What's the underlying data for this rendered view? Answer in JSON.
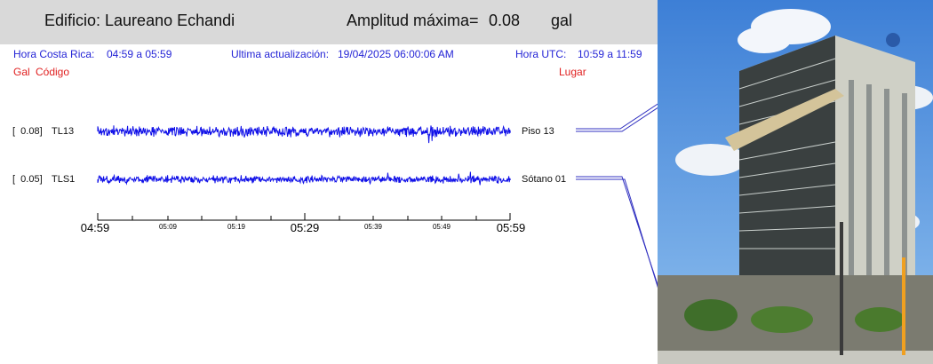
{
  "header": {
    "building_label": "Edificio: Laureano Echandi",
    "amplitude_label": "Amplitud máxima=",
    "amplitude_value": "0.08",
    "amplitude_unit": "gal"
  },
  "info": {
    "local_time_label": "Hora Costa Rica:",
    "local_time_range": "04:59 a 05:59",
    "update_label": "Ultima actualización:",
    "update_value": "19/04/2025 06:00:06 AM",
    "utc_label": "Hora UTC:",
    "utc_range": "10:59 a 11:59"
  },
  "columns": {
    "gal": "Gal",
    "code": "Código",
    "place": "Lugar"
  },
  "traces": [
    {
      "amplitude": "[  0.08]",
      "code": "TL13",
      "place": "Piso 13"
    },
    {
      "amplitude": "[  0.05]",
      "code": "TLS1",
      "place": "Sótano 01"
    }
  ],
  "time_axis": {
    "major_ticks": [
      "04:59",
      "05:29",
      "05:59"
    ],
    "minor_ticks": [
      "05:09",
      "05:19",
      "05:39",
      "05:49"
    ]
  },
  "colors": {
    "trace": "#1010e8",
    "labels_blue": "#2424d6",
    "labels_red": "#e02020",
    "header_bg": "#d9d9d9"
  },
  "photo": {
    "description_icon": "building-photo"
  }
}
